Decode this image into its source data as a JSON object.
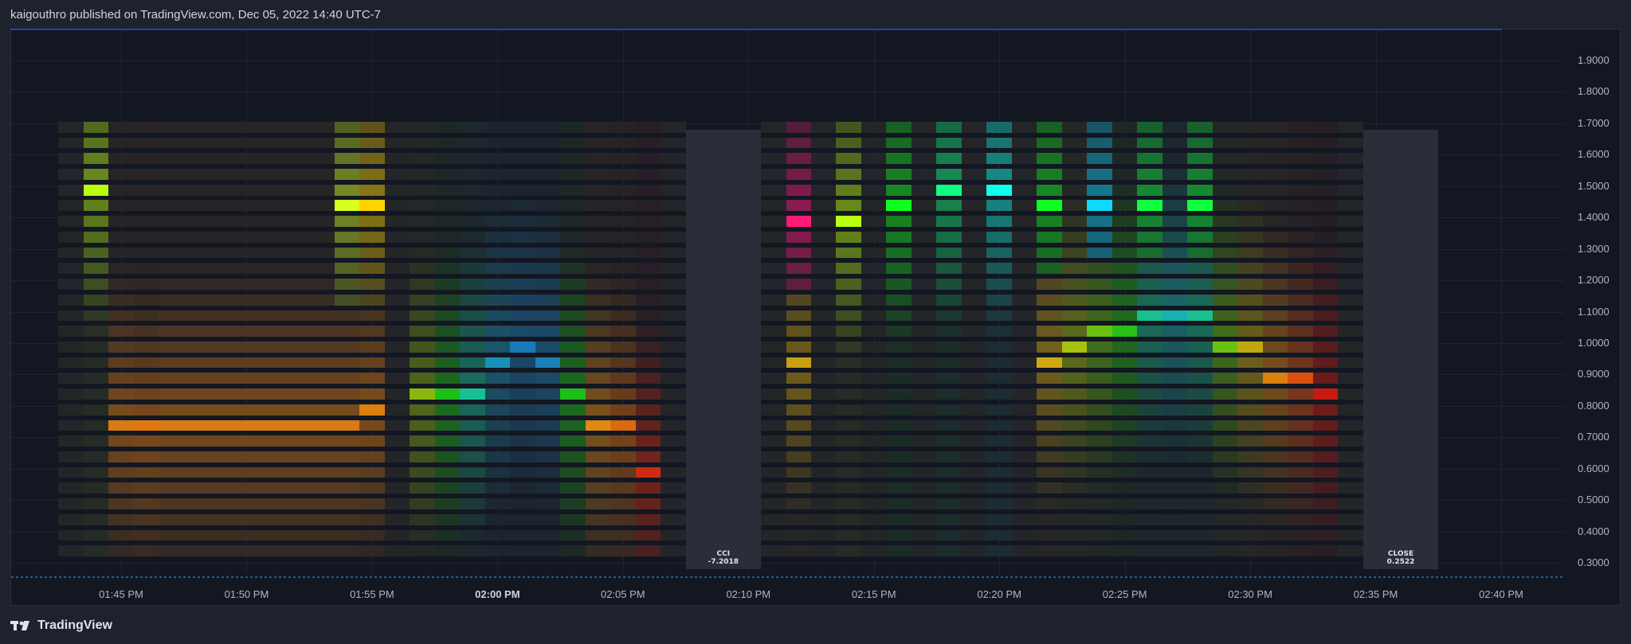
{
  "header": {
    "published": "kaigouthro published on TradingView.com, Dec 05, 2022 14:40 UTC-7"
  },
  "y_axis": [
    "1.9000",
    "1.8000",
    "1.7000",
    "1.6000",
    "1.5000",
    "1.4000",
    "1.3000",
    "1.2000",
    "1.1000",
    "1.0000",
    "0.9000",
    "0.8000",
    "0.7000",
    "0.6000",
    "0.5000",
    "0.4000",
    "0.3000"
  ],
  "x_axis": [
    {
      "label": "01:45 PM",
      "bold": false
    },
    {
      "label": "01:50 PM",
      "bold": false
    },
    {
      "label": "01:55 PM",
      "bold": false
    },
    {
      "label": "02:00 PM",
      "bold": true
    },
    {
      "label": "02:05 PM",
      "bold": false
    },
    {
      "label": "02:10 PM",
      "bold": false
    },
    {
      "label": "02:15 PM",
      "bold": false
    },
    {
      "label": "02:20 PM",
      "bold": false
    },
    {
      "label": "02:25 PM",
      "bold": false
    },
    {
      "label": "02:30 PM",
      "bold": false
    },
    {
      "label": "02:35 PM",
      "bold": false
    },
    {
      "label": "02:40 PM",
      "bold": false
    }
  ],
  "labels": {
    "cci_title": "CCI",
    "cci_value": "-7.2018",
    "close_title": "CLOSE",
    "close_value": "0.2522"
  },
  "footer": {
    "brand": "TradingView"
  },
  "chart_data": {
    "type": "heatmap",
    "ylim": [
      0.3,
      1.9
    ],
    "panels": [
      {
        "name": "CCI",
        "value": -7.2018,
        "hot": [
          {
            "t": "13:44",
            "y": 1.5,
            "c": "#b8ff10"
          },
          {
            "t": "13:45",
            "y": 0.75,
            "c": "#d97a14"
          },
          {
            "t": "13:46",
            "y": 0.72,
            "c": "#e0780f"
          },
          {
            "t": "13:47",
            "y": 0.75,
            "c": "#d97a14"
          },
          {
            "t": "13:48",
            "y": 0.75,
            "c": "#d97a14"
          },
          {
            "t": "13:49",
            "y": 0.75,
            "c": "#d97a14"
          },
          {
            "t": "13:50",
            "y": 0.75,
            "c": "#d97a14"
          },
          {
            "t": "13:51",
            "y": 0.75,
            "c": "#d97a14"
          },
          {
            "t": "13:52",
            "y": 0.75,
            "c": "#d97a14"
          },
          {
            "t": "13:53",
            "y": 0.75,
            "c": "#d97a14"
          },
          {
            "t": "13:54",
            "y": 0.75,
            "c": "#d97a14"
          },
          {
            "t": "13:55",
            "y": 0.78,
            "c": "#de7e10"
          },
          {
            "t": "13:54",
            "y": 1.45,
            "c": "#d8ff20"
          },
          {
            "t": "13:55",
            "y": 1.45,
            "c": "#ffd400"
          },
          {
            "t": "13:57",
            "y": 0.82,
            "c": "#8ab810"
          },
          {
            "t": "13:58",
            "y": 0.82,
            "c": "#1cc018"
          },
          {
            "t": "13:59",
            "y": 0.85,
            "c": "#18c098"
          },
          {
            "t": "14:00",
            "y": 0.95,
            "c": "#1a90b8"
          },
          {
            "t": "14:01",
            "y": 0.99,
            "c": "#1a7ab8"
          },
          {
            "t": "14:02",
            "y": 0.95,
            "c": "#1a80b8"
          },
          {
            "t": "14:03",
            "y": 0.82,
            "c": "#1cc018"
          },
          {
            "t": "14:04",
            "y": 0.75,
            "c": "#e08a14"
          },
          {
            "t": "14:05",
            "y": 0.72,
            "c": "#d86a10"
          },
          {
            "t": "14:06",
            "y": 0.6,
            "c": "#d02a10"
          }
        ]
      },
      {
        "name": "CLOSE",
        "value": 0.2522,
        "hot": [
          {
            "t": "14:12",
            "y": 1.4,
            "c": "#ff1a7a"
          },
          {
            "t": "14:14",
            "y": 1.4,
            "c": "#b8ff10"
          },
          {
            "t": "14:16",
            "y": 1.45,
            "c": "#10ff20"
          },
          {
            "t": "14:18",
            "y": 1.5,
            "c": "#10ff80"
          },
          {
            "t": "14:20",
            "y": 1.5,
            "c": "#10ffea"
          },
          {
            "t": "14:22",
            "y": 1.45,
            "c": "#10ff20"
          },
          {
            "t": "14:24",
            "y": 1.45,
            "c": "#10d8ff"
          },
          {
            "t": "14:26",
            "y": 1.45,
            "c": "#10ff40"
          },
          {
            "t": "14:28",
            "y": 1.45,
            "c": "#10ff40"
          },
          {
            "t": "14:12",
            "y": 0.92,
            "c": "#c8a010"
          },
          {
            "t": "14:22",
            "y": 0.95,
            "c": "#d0a814"
          },
          {
            "t": "14:23",
            "y": 0.98,
            "c": "#a8c010"
          },
          {
            "t": "14:24",
            "y": 1.01,
            "c": "#6ac010"
          },
          {
            "t": "14:25",
            "y": 1.04,
            "c": "#28c018"
          },
          {
            "t": "14:26",
            "y": 1.08,
            "c": "#18c090"
          },
          {
            "t": "14:27",
            "y": 1.1,
            "c": "#18b0b0"
          },
          {
            "t": "14:28",
            "y": 1.08,
            "c": "#18c090"
          },
          {
            "t": "14:29",
            "y": 1.0,
            "c": "#6ac010"
          },
          {
            "t": "14:30",
            "y": 0.96,
            "c": "#c0a810"
          },
          {
            "t": "14:31",
            "y": 0.9,
            "c": "#d88010"
          },
          {
            "t": "14:32",
            "y": 0.86,
            "c": "#d85010"
          },
          {
            "t": "14:33",
            "y": 0.82,
            "c": "#c81a10"
          }
        ]
      }
    ]
  }
}
